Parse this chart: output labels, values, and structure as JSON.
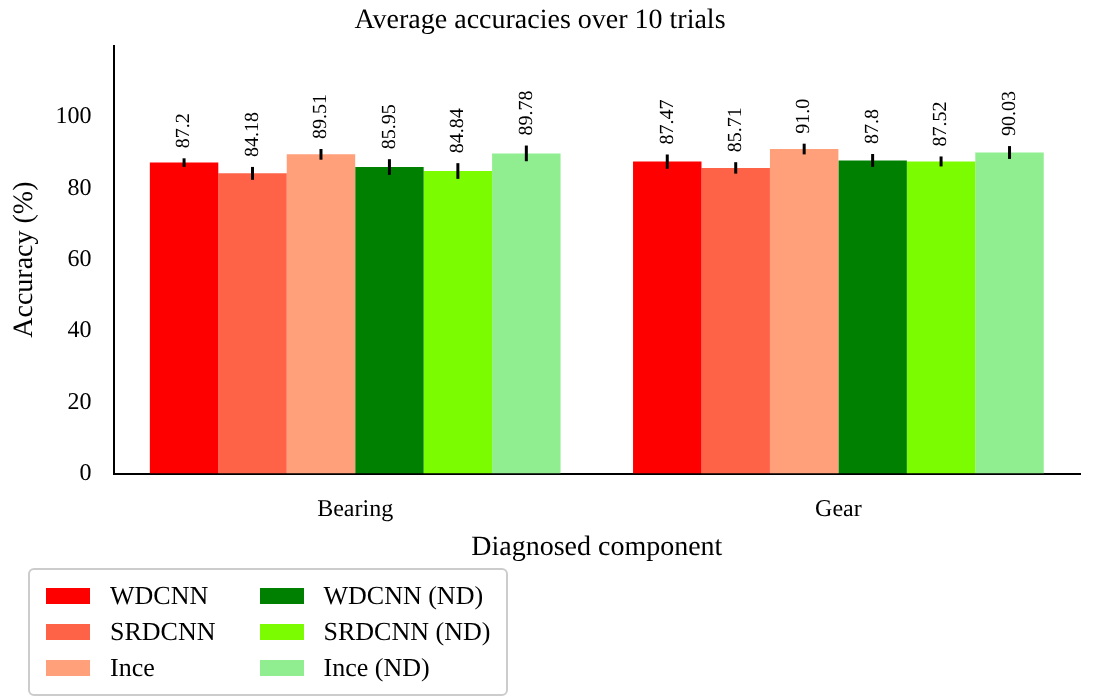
{
  "chart_data": {
    "type": "bar",
    "title": "Average accuracies over 10 trials",
    "xlabel": "Diagnosed component",
    "ylabel": "Accuracy (%)",
    "categories": [
      "Bearing",
      "Gear"
    ],
    "series": [
      {
        "name": "WDCNN",
        "color": "#ff0000",
        "values": [
          87.2,
          87.47
        ],
        "errors": [
          1.2,
          2
        ]
      },
      {
        "name": "SRDCNN",
        "color": "#ff6347",
        "values": [
          84.18,
          85.71
        ],
        "errors": [
          1.8,
          1.6
        ]
      },
      {
        "name": "Ince",
        "color": "#ffa07a",
        "values": [
          89.51,
          91.0
        ],
        "value_labels": [
          "89.51",
          "91.0"
        ],
        "errors": [
          1.5,
          1.5
        ]
      },
      {
        "name": "WDCNN (ND)",
        "color": "#008000",
        "values": [
          85.95,
          87.8
        ],
        "errors": [
          2.2,
          1.8
        ]
      },
      {
        "name": "SRDCNN (ND)",
        "color": "#7cfc00",
        "values": [
          84.84,
          87.52
        ],
        "errors": [
          2.2,
          1.4
        ]
      },
      {
        "name": "Ince (ND)",
        "color": "#90ee90",
        "values": [
          89.78,
          90.03
        ],
        "errors": [
          2.2,
          1.8
        ]
      }
    ],
    "ylim": [
      0,
      120
    ],
    "yticks": [
      0,
      20,
      40,
      60,
      80,
      100
    ],
    "grid": false,
    "legend": "bottom left",
    "data_labels": true
  }
}
